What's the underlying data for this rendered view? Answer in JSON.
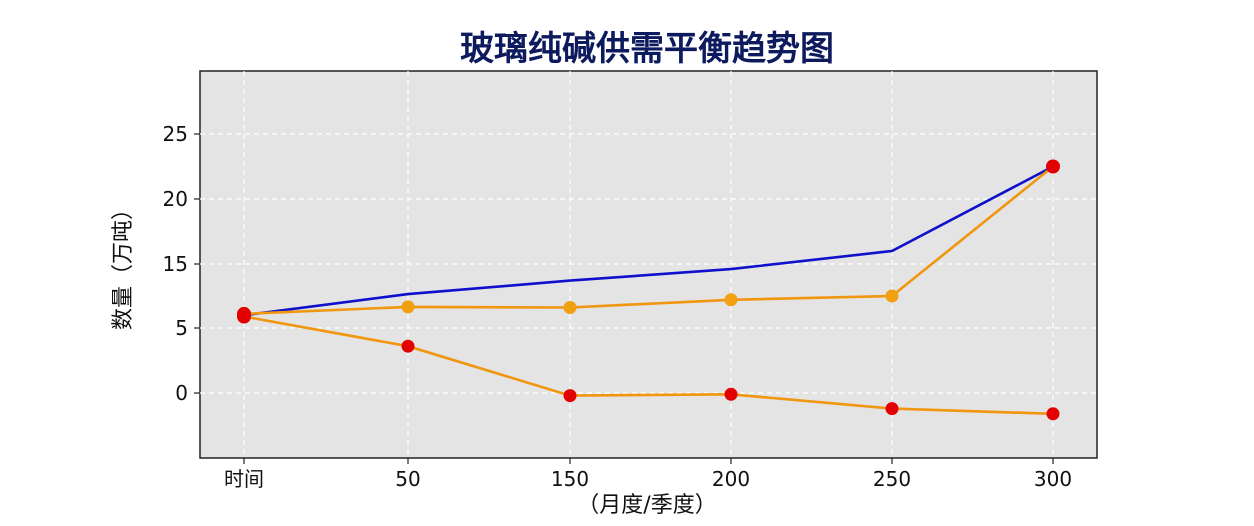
{
  "chart_data": {
    "type": "line",
    "title": "玻璃纯碱供需平衡趋势图",
    "xlabel": "（月度/季度）",
    "ylabel": "数量（万吨）",
    "categories": [
      "时间",
      "50",
      "150",
      "200",
      "250",
      "300"
    ],
    "y_ticks": [
      0,
      5,
      15,
      20,
      25
    ],
    "ylim": [
      -5,
      30
    ],
    "grid": true,
    "series": [
      {
        "color": "#1010cc",
        "marker_color": null,
        "values": [
          7.0,
          10.3,
          12.4,
          14.2,
          16.0,
          22.5
        ]
      },
      {
        "color": "#f0960f",
        "marker_color": "#f0a010",
        "values": [
          7.2,
          8.3,
          8.2,
          9.4,
          10.0,
          22.5
        ]
      },
      {
        "color": "#f0960f",
        "marker_color": "#e30000",
        "values": [
          6.8,
          3.6,
          -0.2,
          -0.1,
          -1.2,
          -1.6
        ]
      }
    ],
    "start_marker_color": "#e30000"
  }
}
